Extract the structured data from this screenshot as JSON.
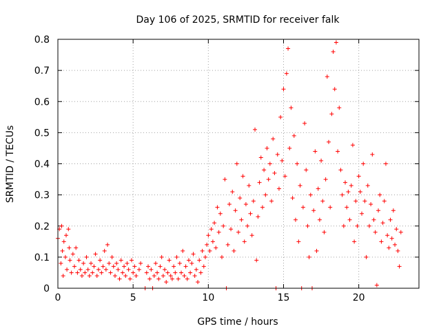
{
  "chart_data": {
    "type": "scatter",
    "title": "Day 106 of 2025, SRMTID for receiver falk",
    "xlabel": "GPS time / hours",
    "ylabel": "SRMTID / TECUs",
    "xlim": [
      0,
      24
    ],
    "ylim": [
      0,
      0.8
    ],
    "xticks": [
      0,
      5,
      10,
      15,
      20
    ],
    "xtick_labels": [
      "0",
      "5",
      "10",
      "15",
      "20"
    ],
    "yticks": [
      0,
      0.1,
      0.2,
      0.3,
      0.4,
      0.5,
      0.6,
      0.7,
      0.8
    ],
    "ytick_labels": [
      "0",
      "0.1",
      "0.2",
      "0.3",
      "0.4",
      "0.5",
      "0.6",
      "0.7",
      "0.8"
    ],
    "grid": true,
    "marker": "+",
    "color": "#ff0000",
    "series": [
      {
        "name": "SRMTID",
        "points": [
          [
            0.0,
            0.16
          ],
          [
            0.1,
            0.19
          ],
          [
            0.2,
            0.08
          ],
          [
            0.25,
            0.2
          ],
          [
            0.3,
            0.12
          ],
          [
            0.35,
            0.04
          ],
          [
            0.4,
            0.15
          ],
          [
            0.5,
            0.1
          ],
          [
            0.55,
            0.17
          ],
          [
            0.6,
            0.06
          ],
          [
            0.7,
            0.19
          ],
          [
            0.75,
            0.13
          ],
          [
            0.8,
            0.09
          ],
          [
            0.9,
            0.05
          ],
          [
            1.0,
            0.11
          ],
          [
            1.1,
            0.07
          ],
          [
            1.2,
            0.13
          ],
          [
            1.3,
            0.05
          ],
          [
            1.4,
            0.09
          ],
          [
            1.5,
            0.06
          ],
          [
            1.6,
            0.04
          ],
          [
            1.7,
            0.08
          ],
          [
            1.8,
            0.05
          ],
          [
            1.9,
            0.1
          ],
          [
            2.0,
            0.06
          ],
          [
            2.1,
            0.04
          ],
          [
            2.2,
            0.08
          ],
          [
            2.3,
            0.05
          ],
          [
            2.4,
            0.07
          ],
          [
            2.5,
            0.11
          ],
          [
            2.6,
            0.04
          ],
          [
            2.7,
            0.06
          ],
          [
            2.8,
            0.09
          ],
          [
            2.9,
            0.05
          ],
          [
            3.0,
            0.07
          ],
          [
            3.1,
            0.12
          ],
          [
            3.2,
            0.06
          ],
          [
            3.3,
            0.14
          ],
          [
            3.4,
            0.08
          ],
          [
            3.5,
            0.05
          ],
          [
            3.6,
            0.1
          ],
          [
            3.7,
            0.07
          ],
          [
            3.8,
            0.04
          ],
          [
            3.9,
            0.08
          ],
          [
            4.0,
            0.06
          ],
          [
            4.1,
            0.03
          ],
          [
            4.2,
            0.09
          ],
          [
            4.3,
            0.05
          ],
          [
            4.4,
            0.07
          ],
          [
            4.5,
            0.04
          ],
          [
            4.6,
            0.08
          ],
          [
            4.7,
            0.06
          ],
          [
            4.8,
            0.03
          ],
          [
            4.9,
            0.09
          ],
          [
            5.0,
            0.05
          ],
          [
            5.1,
            0.07
          ],
          [
            5.2,
            0.04
          ],
          [
            5.4,
            0.06
          ],
          [
            5.5,
            0.08
          ],
          [
            5.8,
            0.0
          ],
          [
            5.9,
            0.05
          ],
          [
            6.0,
            0.07
          ],
          [
            6.1,
            0.03
          ],
          [
            6.2,
            0.06
          ],
          [
            6.3,
            0.0
          ],
          [
            6.4,
            0.04
          ],
          [
            6.5,
            0.08
          ],
          [
            6.6,
            0.05
          ],
          [
            6.7,
            0.03
          ],
          [
            6.8,
            0.07
          ],
          [
            6.9,
            0.1
          ],
          [
            7.0,
            0.04
          ],
          [
            7.1,
            0.06
          ],
          [
            7.2,
            0.02
          ],
          [
            7.3,
            0.05
          ],
          [
            7.4,
            0.09
          ],
          [
            7.5,
            0.04
          ],
          [
            7.6,
            0.03
          ],
          [
            7.7,
            0.07
          ],
          [
            7.8,
            0.05
          ],
          [
            7.9,
            0.1
          ],
          [
            8.0,
            0.03
          ],
          [
            8.1,
            0.08
          ],
          [
            8.2,
            0.05
          ],
          [
            8.3,
            0.12
          ],
          [
            8.4,
            0.04
          ],
          [
            8.5,
            0.07
          ],
          [
            8.6,
            0.03
          ],
          [
            8.7,
            0.09
          ],
          [
            8.8,
            0.05
          ],
          [
            8.9,
            0.08
          ],
          [
            9.0,
            0.11
          ],
          [
            9.1,
            0.04
          ],
          [
            9.2,
            0.06
          ],
          [
            9.3,
            0.02
          ],
          [
            9.4,
            0.09
          ],
          [
            9.5,
            0.05
          ],
          [
            9.6,
            0.12
          ],
          [
            9.7,
            0.07
          ],
          [
            9.8,
            0.1
          ],
          [
            9.9,
            0.14
          ],
          [
            10.0,
            0.17
          ],
          [
            10.1,
            0.12
          ],
          [
            10.2,
            0.19
          ],
          [
            10.3,
            0.15
          ],
          [
            10.4,
            0.21
          ],
          [
            10.5,
            0.13
          ],
          [
            10.6,
            0.26
          ],
          [
            10.7,
            0.18
          ],
          [
            10.8,
            0.24
          ],
          [
            10.9,
            0.1
          ],
          [
            11.0,
            0.2
          ],
          [
            11.1,
            0.35
          ],
          [
            11.2,
            0.0
          ],
          [
            11.3,
            0.14
          ],
          [
            11.4,
            0.27
          ],
          [
            11.5,
            0.19
          ],
          [
            11.6,
            0.31
          ],
          [
            11.7,
            0.12
          ],
          [
            11.8,
            0.25
          ],
          [
            11.9,
            0.4
          ],
          [
            12.0,
            0.18
          ],
          [
            12.1,
            0.29
          ],
          [
            12.2,
            0.22
          ],
          [
            12.3,
            0.36
          ],
          [
            12.4,
            0.15
          ],
          [
            12.5,
            0.27
          ],
          [
            12.6,
            0.2
          ],
          [
            12.7,
            0.33
          ],
          [
            12.8,
            0.24
          ],
          [
            12.9,
            0.17
          ],
          [
            13.0,
            0.28
          ],
          [
            13.1,
            0.51
          ],
          [
            13.2,
            0.09
          ],
          [
            13.3,
            0.23
          ],
          [
            13.4,
            0.34
          ],
          [
            13.5,
            0.42
          ],
          [
            13.6,
            0.26
          ],
          [
            13.7,
            0.38
          ],
          [
            13.8,
            0.3
          ],
          [
            13.9,
            0.45
          ],
          [
            14.0,
            0.35
          ],
          [
            14.1,
            0.4
          ],
          [
            14.2,
            0.28
          ],
          [
            14.3,
            0.48
          ],
          [
            14.4,
            0.37
          ],
          [
            14.5,
            0.0
          ],
          [
            14.6,
            0.43
          ],
          [
            14.7,
            0.32
          ],
          [
            14.8,
            0.55
          ],
          [
            14.9,
            0.41
          ],
          [
            15.0,
            0.64
          ],
          [
            15.1,
            0.36
          ],
          [
            15.2,
            0.69
          ],
          [
            15.3,
            0.77
          ],
          [
            15.4,
            0.45
          ],
          [
            15.5,
            0.58
          ],
          [
            15.6,
            0.29
          ],
          [
            15.7,
            0.49
          ],
          [
            15.8,
            0.22
          ],
          [
            15.9,
            0.4
          ],
          [
            16.0,
            0.15
          ],
          [
            16.1,
            0.33
          ],
          [
            16.2,
            0.0
          ],
          [
            16.3,
            0.26
          ],
          [
            16.4,
            0.53
          ],
          [
            16.5,
            0.38
          ],
          [
            16.6,
            0.2
          ],
          [
            16.7,
            0.1
          ],
          [
            16.8,
            0.3
          ],
          [
            16.9,
            0.0
          ],
          [
            17.0,
            0.25
          ],
          [
            17.1,
            0.44
          ],
          [
            17.2,
            0.12
          ],
          [
            17.3,
            0.32
          ],
          [
            17.4,
            0.22
          ],
          [
            17.5,
            0.41
          ],
          [
            17.6,
            0.28
          ],
          [
            17.7,
            0.18
          ],
          [
            17.8,
            0.35
          ],
          [
            17.9,
            0.68
          ],
          [
            18.0,
            0.47
          ],
          [
            18.1,
            0.26
          ],
          [
            18.2,
            0.56
          ],
          [
            18.3,
            0.76
          ],
          [
            18.4,
            0.64
          ],
          [
            18.5,
            0.79
          ],
          [
            18.6,
            0.44
          ],
          [
            18.7,
            0.58
          ],
          [
            18.8,
            0.38
          ],
          [
            18.9,
            0.3
          ],
          [
            19.0,
            0.2
          ],
          [
            19.1,
            0.34
          ],
          [
            19.2,
            0.26
          ],
          [
            19.3,
            0.31
          ],
          [
            19.4,
            0.22
          ],
          [
            19.5,
            0.33
          ],
          [
            19.6,
            0.46
          ],
          [
            19.7,
            0.15
          ],
          [
            19.8,
            0.28
          ],
          [
            19.9,
            0.2
          ],
          [
            20.0,
            0.36
          ],
          [
            20.1,
            0.31
          ],
          [
            20.2,
            0.24
          ],
          [
            20.3,
            0.4
          ],
          [
            20.4,
            0.28
          ],
          [
            20.5,
            0.1
          ],
          [
            20.6,
            0.33
          ],
          [
            20.7,
            0.2
          ],
          [
            20.8,
            0.27
          ],
          [
            20.9,
            0.43
          ],
          [
            21.0,
            0.22
          ],
          [
            21.1,
            0.18
          ],
          [
            21.2,
            0.01
          ],
          [
            21.3,
            0.25
          ],
          [
            21.4,
            0.3
          ],
          [
            21.5,
            0.15
          ],
          [
            21.6,
            0.21
          ],
          [
            21.7,
            0.28
          ],
          [
            21.8,
            0.4
          ],
          [
            21.9,
            0.17
          ],
          [
            22.0,
            0.13
          ],
          [
            22.1,
            0.22
          ],
          [
            22.2,
            0.16
          ],
          [
            22.3,
            0.25
          ],
          [
            22.4,
            0.14
          ],
          [
            22.5,
            0.19
          ],
          [
            22.6,
            0.12
          ],
          [
            22.7,
            0.07
          ],
          [
            22.8,
            0.18
          ]
        ]
      }
    ]
  }
}
